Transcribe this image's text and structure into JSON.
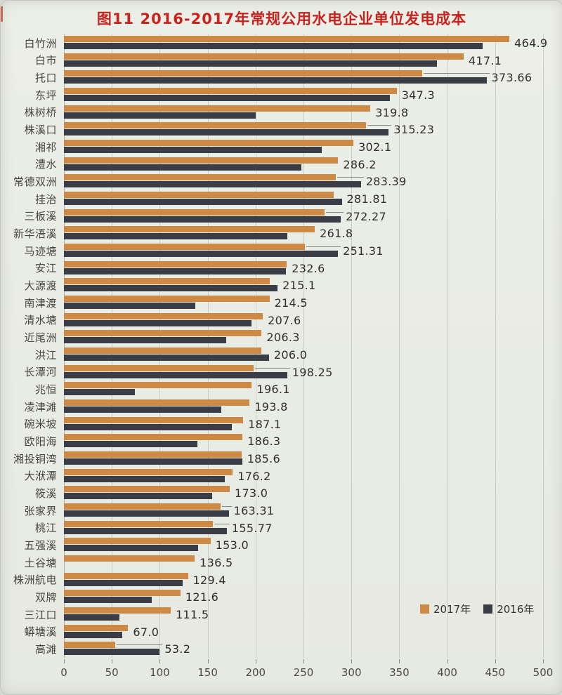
{
  "page": {
    "background": "#eaece5"
  },
  "title": {
    "text": "图11 2016-2017年常规公用水电企业单位发电成本",
    "color": "#c8231d"
  },
  "legend": {
    "position": "bottom-right",
    "items": [
      {
        "label": "2017年",
        "color": "#cd8a45"
      },
      {
        "label": "2016年",
        "color": "#3a3c46"
      }
    ]
  },
  "axis": {
    "min": 0,
    "max": 500,
    "step": 50,
    "tick_labels": [
      "0",
      "50",
      "100",
      "150",
      "200",
      "250",
      "300",
      "350",
      "400",
      "450",
      "500"
    ]
  },
  "chart_data": {
    "type": "bar",
    "orientation": "horizontal",
    "title": "图11 2016-2017年常规公用水电企业单位发电成本",
    "xlabel": "",
    "ylabel": "",
    "xlim": [
      0,
      500
    ],
    "x_ticks": [
      0,
      50,
      100,
      150,
      200,
      250,
      300,
      350,
      400,
      450,
      500
    ],
    "grid": true,
    "legend_position": "bottom-right",
    "categories": [
      "白竹洲",
      "白市",
      "托口",
      "东坪",
      "株树桥",
      "株溪口",
      "湘祁",
      "澧水",
      "常德双洲",
      "挂治",
      "三板溪",
      "新华浯溪",
      "马迹塘",
      "安江",
      "大源渡",
      "南津渡",
      "清水塘",
      "近尾洲",
      "洪江",
      "长潭河",
      "兆恒",
      "凌津滩",
      "碗米坡",
      "欧阳海",
      "湘投铜湾",
      "大洑潭",
      "筱溪",
      "张家界",
      "桃江",
      "五强溪",
      "土谷塘",
      "株洲航电",
      "双牌",
      "三江口",
      "蟒塘溪",
      "高滩"
    ],
    "series": [
      {
        "name": "2017年",
        "color": "#cd8a45",
        "values": [
          464.9,
          417.1,
          373.66,
          347.3,
          319.8,
          315.23,
          302.1,
          286.2,
          283.39,
          281.81,
          272.27,
          261.8,
          251.31,
          232.6,
          215.1,
          214.5,
          207.6,
          206.3,
          206.0,
          198.25,
          196.1,
          193.8,
          187.1,
          186.3,
          185.6,
          176.2,
          173.0,
          163.31,
          155.77,
          153.0,
          136.5,
          129.4,
          121.6,
          111.5,
          67.0,
          53.2
        ],
        "data_labels": [
          "464.9",
          "417.1",
          "373.66",
          "347.3",
          "319.8",
          "315.23",
          "302.1",
          "286.2",
          "283.39",
          "281.81",
          "272.27",
          "261.8",
          "251.31",
          "232.6",
          "215.1",
          "214.5",
          "207.6",
          "206.3",
          "206.0",
          "198.25",
          "196.1",
          "193.8",
          "187.1",
          "186.3",
          "185.6",
          "176.2",
          "173.0",
          "163.31",
          "155.77",
          "153.0",
          "136.5",
          "129.4",
          "121.6",
          "111.5",
          "67.0",
          "53.2"
        ]
      },
      {
        "name": "2016年",
        "color": "#3a3c46",
        "values": [
          437,
          389,
          441,
          340,
          200,
          339,
          269,
          248,
          310,
          290,
          289,
          233,
          286,
          232,
          223,
          137,
          196,
          169,
          214,
          233,
          74,
          164,
          175,
          139,
          186,
          168,
          155,
          172,
          170,
          140,
          null,
          124,
          92,
          58,
          61,
          100
        ]
      }
    ],
    "label_leader_lines": [
      false,
      false,
      true,
      false,
      false,
      true,
      false,
      false,
      true,
      false,
      true,
      false,
      true,
      false,
      false,
      false,
      false,
      false,
      false,
      true,
      false,
      false,
      false,
      false,
      false,
      false,
      false,
      true,
      true,
      false,
      false,
      false,
      false,
      false,
      false,
      true
    ]
  }
}
